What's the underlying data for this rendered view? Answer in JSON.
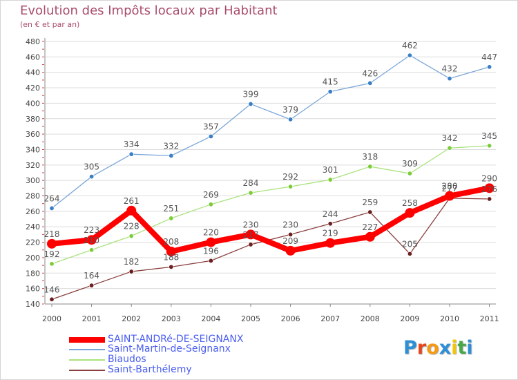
{
  "header": {
    "title": "Evolution des Impôts locaux par Habitant",
    "subtitle": "(en € et par an)"
  },
  "chart_data": {
    "type": "line",
    "title": "Evolution des Impôts locaux par Habitant",
    "subtitle": "(en € et par an)",
    "xlabel": "",
    "ylabel": "",
    "x": [
      "2000",
      "2001",
      "2002",
      "2003",
      "2004",
      "2005",
      "2006",
      "2007",
      "2008",
      "2009",
      "2010",
      "2011"
    ],
    "ylim": [
      140,
      480
    ],
    "yticks": [
      140,
      160,
      180,
      200,
      220,
      240,
      260,
      280,
      300,
      320,
      340,
      360,
      380,
      400,
      420,
      440,
      460,
      480
    ],
    "grid": "horizontal",
    "legend": "bottom",
    "series": [
      {
        "name": "SAINT-ANDRé-DE-SEIGNANX",
        "color": "#ff0000",
        "marker": "#ff0000",
        "values": [
          218,
          223,
          261,
          208,
          220,
          230,
          209,
          219,
          227,
          258,
          280,
          290
        ],
        "labels": [
          "218",
          "223",
          "261",
          "208",
          "220",
          "230",
          "209",
          "219",
          "227",
          "258",
          "280",
          "290"
        ]
      },
      {
        "name": "Saint-Martin-de-Seignanx",
        "color": "#7aa6d8",
        "marker": "#3a7ec6",
        "values": [
          264,
          305,
          334,
          332,
          357,
          399,
          379,
          415,
          426,
          462,
          432,
          447
        ],
        "labels": [
          "264",
          "305",
          "334",
          "332",
          "357",
          "399",
          "379",
          "415",
          "426",
          "462",
          "432",
          "447"
        ]
      },
      {
        "name": "Biaudos",
        "color": "#a9e27c",
        "marker": "#7ccc3a",
        "values": [
          192,
          210,
          228,
          251,
          269,
          284,
          292,
          301,
          318,
          309,
          342,
          345
        ],
        "labels": [
          "192",
          "210",
          "228",
          "251",
          "269",
          "284",
          "292",
          "301",
          "318",
          "309",
          "342",
          "345"
        ]
      },
      {
        "name": "Saint-Barthélemy",
        "color": "#8a3e3e",
        "marker": "#6b1f1f",
        "values": [
          146,
          164,
          182,
          188,
          196,
          217,
          230,
          244,
          259,
          205,
          277,
          276
        ],
        "labels": [
          "146",
          "164",
          "182",
          "188",
          "196",
          "217",
          "230",
          "244",
          "259",
          "205",
          "277",
          "276"
        ]
      }
    ]
  },
  "logo": {
    "letters": [
      "P",
      "r",
      "o",
      "x",
      "i",
      "t",
      "i"
    ],
    "colors": [
      "#2d8fd6",
      "#e8451a",
      "#f59a12",
      "#2d8fd6",
      "#f1c40f",
      "#48a848",
      "#2d8fd6"
    ]
  }
}
